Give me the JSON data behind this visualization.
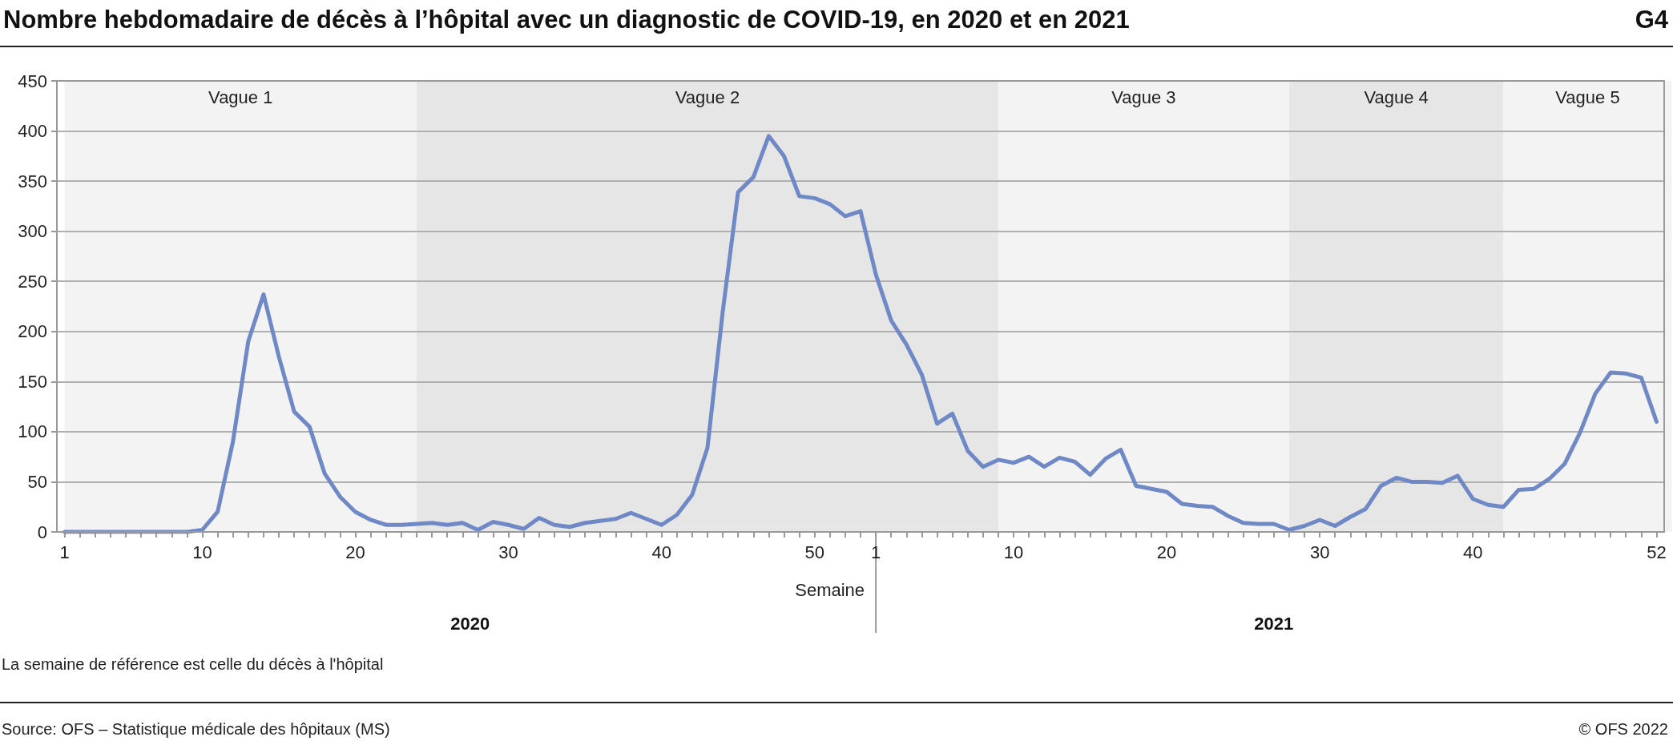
{
  "chart_data": {
    "type": "line",
    "title": "Nombre hebdomadaire de décès à l’hôpital avec un diagnostic de COVID-19, en 2020 et en 2021",
    "categories": [
      "1",
      null,
      null,
      null,
      null,
      null,
      null,
      null,
      null,
      "10",
      null,
      null,
      null,
      null,
      null,
      null,
      null,
      null,
      null,
      "20",
      null,
      null,
      null,
      null,
      null,
      null,
      null,
      null,
      null,
      "30",
      null,
      null,
      null,
      null,
      null,
      null,
      null,
      null,
      null,
      "40",
      null,
      null,
      null,
      null,
      null,
      null,
      null,
      null,
      null,
      "50",
      null,
      null,
      null,
      "1",
      null,
      null,
      null,
      null,
      null,
      null,
      null,
      null,
      "10",
      null,
      null,
      null,
      null,
      null,
      null,
      null,
      null,
      null,
      "20",
      null,
      null,
      null,
      null,
      null,
      null,
      null,
      null,
      null,
      "30",
      null,
      null,
      null,
      null,
      null,
      null,
      null,
      null,
      null,
      "40",
      null,
      null,
      null,
      null,
      null,
      null,
      null,
      null,
      null,
      null,
      null,
      "52"
    ],
    "series": [
      {
        "color": "#6f88c6",
        "values": [
          0,
          0,
          0,
          0,
          0,
          0,
          0,
          0,
          0,
          2,
          20,
          90,
          190,
          237,
          175,
          120,
          105,
          58,
          35,
          20,
          12,
          7,
          7,
          8,
          9,
          7,
          9,
          2,
          10,
          7,
          3,
          14,
          7,
          5,
          9,
          11,
          13,
          19,
          13,
          7,
          17,
          37,
          84,
          220,
          339,
          354,
          395,
          375,
          335,
          333,
          327,
          315,
          320,
          257,
          211,
          187,
          157,
          108,
          118,
          81,
          65,
          72,
          69,
          75,
          65,
          74,
          70,
          57,
          73,
          82,
          46,
          43,
          40,
          28,
          26,
          25,
          16,
          9,
          8,
          8,
          2,
          6,
          12,
          6,
          15,
          23,
          46,
          54,
          50,
          50,
          49,
          56,
          33,
          27,
          25,
          42,
          43,
          53,
          68,
          99,
          138,
          159,
          158,
          154,
          110
        ]
      }
    ],
    "ylim": [
      0,
      450
    ],
    "yticks": [
      0,
      50,
      100,
      150,
      200,
      250,
      300,
      350,
      400,
      450
    ],
    "grid": "y",
    "marker": "none",
    "line_style": "solid",
    "annotations": [
      "Semaine",
      "2020",
      "2021",
      "La semaine de référence est celle du décès à l'hôpital",
      "Source: OFS – Statistique médicale des hôpitaux (MS)",
      "© OFS 2022",
      "G4",
      "Vague 1",
      "Vague 2",
      "Vague 3",
      "Vague 4",
      "Vague 5"
    ]
  }
}
